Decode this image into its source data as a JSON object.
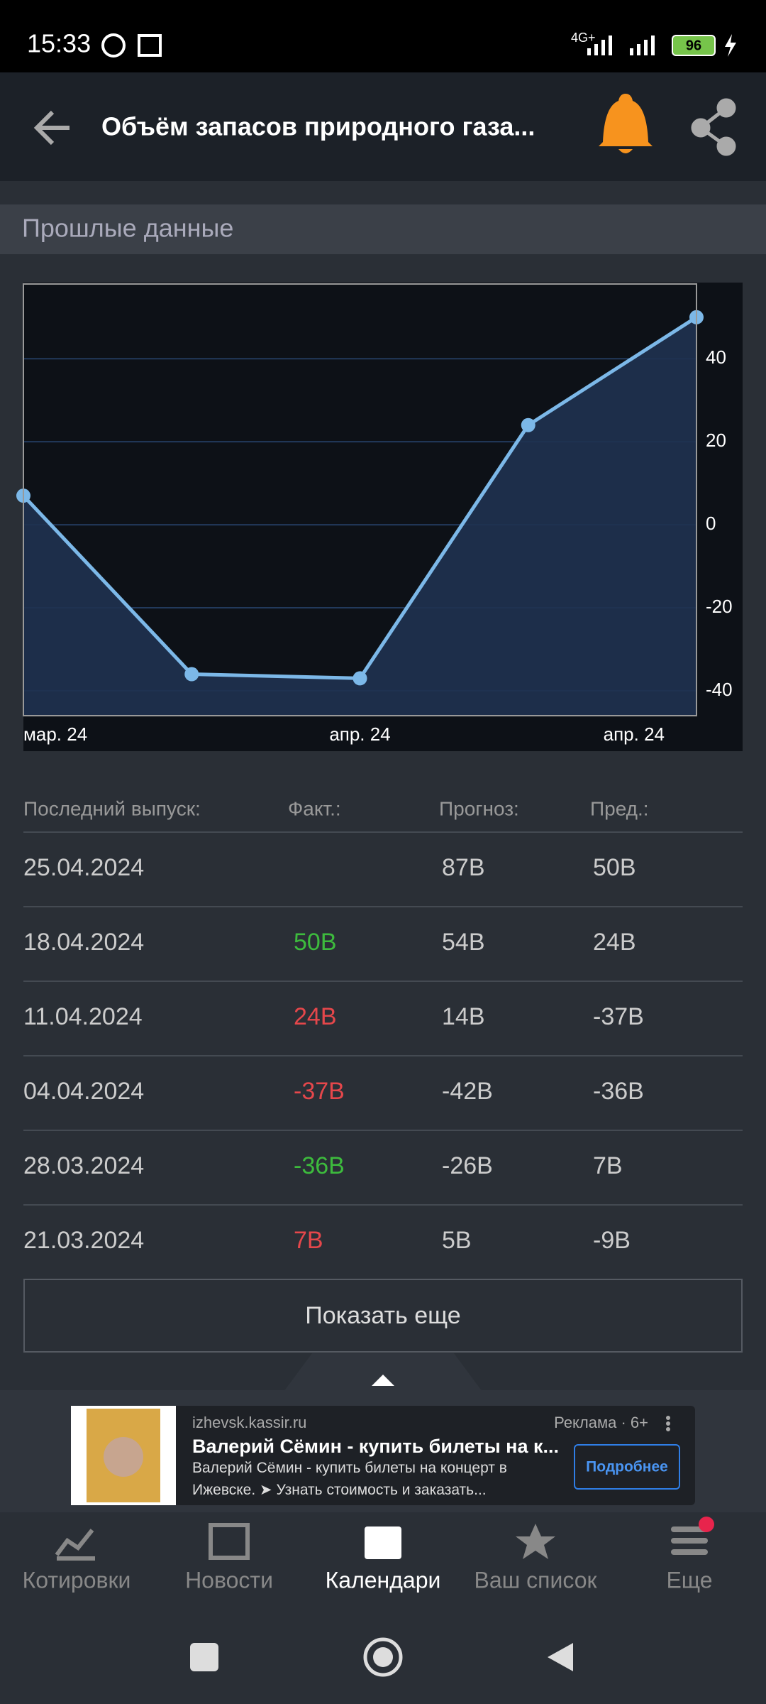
{
  "status_bar": {
    "time": "15:33",
    "network": "4G+",
    "battery": "96"
  },
  "header": {
    "title": "Объём запасов природного газа..."
  },
  "section": {
    "title": "Прошлые данные"
  },
  "chart_data": {
    "type": "line",
    "categories": [
      "мар. 24",
      null,
      "апр. 24",
      null,
      "апр. 24"
    ],
    "values": [
      7,
      -36,
      -37,
      24,
      50
    ],
    "color": "#7cb8e8",
    "area_color": "#1f3250",
    "ylim": [
      -46,
      58
    ],
    "yticks": [
      -40,
      -20,
      0,
      20,
      40
    ],
    "grid": true
  },
  "table": {
    "headers": [
      "Последний выпуск:",
      "Факт.:",
      "Прогноз:",
      "Пред.:"
    ],
    "rows": [
      {
        "date": "25.04.2024",
        "actual": null,
        "actual_color": null,
        "forecast": "87B",
        "previous": "50B"
      },
      {
        "date": "18.04.2024",
        "actual": "50B",
        "actual_color": "#3dbb3d",
        "forecast": "54B",
        "previous": "24B"
      },
      {
        "date": "11.04.2024",
        "actual": "24B",
        "actual_color": "#e5474b",
        "forecast": "14B",
        "previous": "-37B"
      },
      {
        "date": "04.04.2024",
        "actual": "-37B",
        "actual_color": "#e5474b",
        "forecast": "-42B",
        "previous": "-36B"
      },
      {
        "date": "28.03.2024",
        "actual": "-36B",
        "actual_color": "#3dbb3d",
        "forecast": "-26B",
        "previous": "7B"
      },
      {
        "date": "21.03.2024",
        "actual": "7B",
        "actual_color": "#e5474b",
        "forecast": "5B",
        "previous": "-9B"
      }
    ]
  },
  "show_more": "Показать еще",
  "ad": {
    "domain": "izhevsk.kassir.ru",
    "badge": "Реклама · 6+",
    "title": "Валерий Сёмин - купить билеты на к...",
    "body": "Валерий Сёмин - купить билеты на концерт в Ижевске. ➤ Узнать стоимость и заказать...",
    "button": "Подробнее"
  },
  "nav": [
    "Котировки",
    "Новости",
    "Календари",
    "Ваш список",
    "Еще"
  ]
}
